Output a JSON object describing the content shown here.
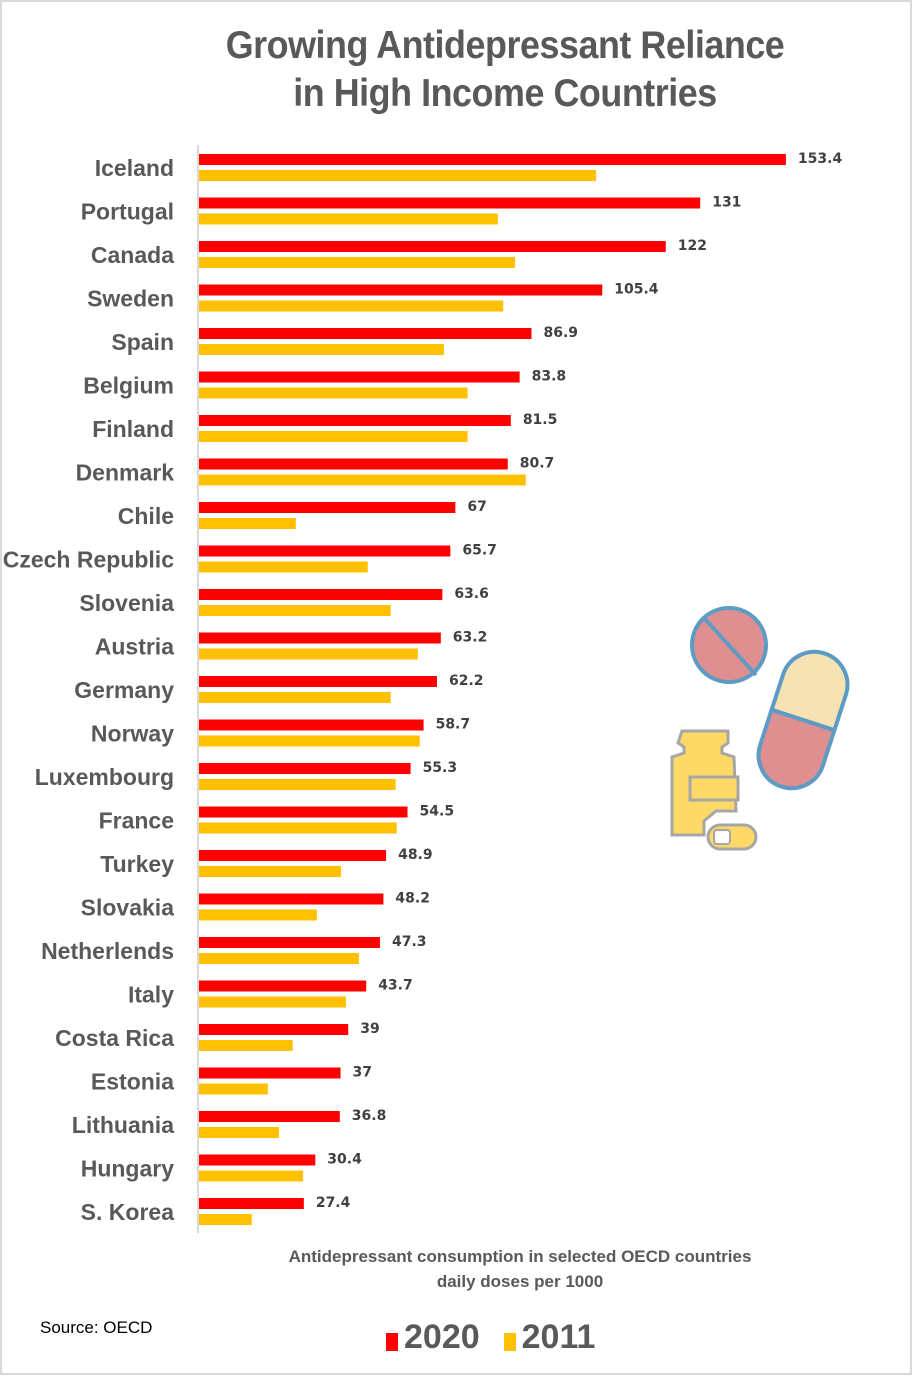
{
  "title_lines": [
    "Growing Antidepressant Reliance",
    "in High Income Countries"
  ],
  "source": "Source: OECD",
  "icon": "pills-and-bottle-icon",
  "chart_data": {
    "type": "bar",
    "orientation": "horizontal",
    "title": "Growing Antidepressant Reliance in High Income Countries",
    "xlabel": "Antidepressant consumption in selected OECD countries daily doses per 1000",
    "xlabel_lines": [
      "Antidepressant consumption in selected OECD countries",
      "daily doses per 1000"
    ],
    "ylabel": "",
    "xlim": [
      0,
      160
    ],
    "grid": false,
    "legend_position": "bottom",
    "colors": {
      "2020": "#ff0000",
      "2011": "#ffc000"
    },
    "categories": [
      "Iceland",
      "Portugal",
      "Canada",
      "Sweden",
      "Spain",
      "Belgium",
      "Finland",
      "Denmark",
      "Chile",
      "Czech Republic",
      "Slovenia",
      "Austria",
      "Germany",
      "Norway",
      "Luxembourg",
      "France",
      "Turkey",
      "Slovakia",
      "Netherlends",
      "Italy",
      "Costa Rica",
      "Estonia",
      "Lithuania",
      "Hungary",
      "S. Korea"
    ],
    "series": [
      {
        "name": "2020",
        "values": [
          153.4,
          131,
          122,
          105.4,
          86.9,
          83.8,
          81.5,
          80.7,
          67,
          65.7,
          63.6,
          63.2,
          62.2,
          58.7,
          55.3,
          54.5,
          48.9,
          48.2,
          47.3,
          43.7,
          39,
          37,
          36.8,
          30.4,
          27.4
        ],
        "labels": [
          "153.4",
          "131",
          "122",
          "105.4",
          "86.9",
          "83.8",
          "81.5",
          "80.7",
          "67",
          "65.7",
          "63.6",
          "63.2",
          "62.2",
          "58.7",
          "55.3",
          "54.5",
          "48.9",
          "48.2",
          "47.3",
          "43.7",
          "39",
          "37",
          "36.8",
          "30.4",
          "27.4"
        ]
      },
      {
        "name": "2011",
        "values": [
          103.8,
          78.1,
          82.6,
          79.5,
          64.0,
          70.2,
          70.2,
          85.4,
          25.3,
          44.1,
          50.1,
          57.2,
          50.1,
          57.7,
          51.4,
          51.7,
          37.1,
          30.8,
          41.8,
          38.4,
          24.5,
          18.0,
          20.9,
          27.2,
          13.8
        ]
      }
    ],
    "legend": [
      "2020",
      "2011"
    ]
  }
}
